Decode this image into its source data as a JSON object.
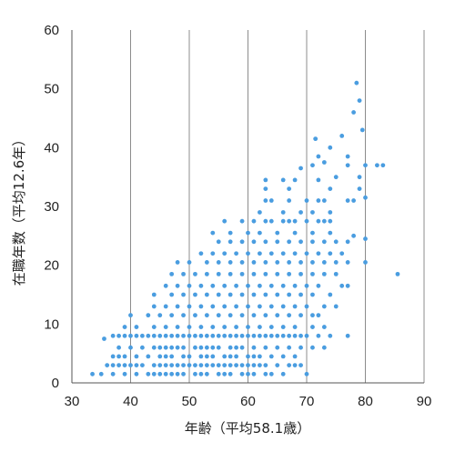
{
  "chart_data": {
    "type": "scatter",
    "xlabel": "年齢（平均58.1歳）",
    "ylabel": "在職年数（平均12.6年）",
    "xlim": [
      30,
      90
    ],
    "ylim": [
      0,
      60
    ],
    "xticks": [
      30,
      40,
      50,
      60,
      70,
      80,
      90
    ],
    "yticks": [
      0,
      10,
      20,
      30,
      40,
      50,
      60
    ],
    "grid": "vertical",
    "point_color": "#4a9de0",
    "series": [
      {
        "points": [
          [
            33.5,
            1.5
          ],
          [
            35,
            1.5
          ],
          [
            37,
            1.5
          ],
          [
            39,
            1.5
          ],
          [
            41,
            1.5
          ],
          [
            43,
            1.5
          ],
          [
            44,
            1.5
          ],
          [
            45,
            1.5
          ],
          [
            46,
            1.5
          ],
          [
            47,
            1.5
          ],
          [
            48,
            1.5
          ],
          [
            49,
            1.5
          ],
          [
            51,
            1.5
          ],
          [
            52,
            1.5
          ],
          [
            53,
            1.5
          ],
          [
            55,
            1.5
          ],
          [
            56,
            1.5
          ],
          [
            57,
            1.5
          ],
          [
            59,
            1.5
          ],
          [
            60,
            1.5
          ],
          [
            61,
            1.5
          ],
          [
            63,
            1.5
          ],
          [
            64,
            1.5
          ],
          [
            66,
            1.5
          ],
          [
            70,
            1.5
          ],
          [
            36,
            3
          ],
          [
            37,
            3
          ],
          [
            38,
            3
          ],
          [
            39,
            3
          ],
          [
            40,
            3
          ],
          [
            41,
            3
          ],
          [
            42,
            3
          ],
          [
            44,
            3
          ],
          [
            45,
            3
          ],
          [
            46,
            3
          ],
          [
            47,
            3
          ],
          [
            48,
            3
          ],
          [
            49,
            3
          ],
          [
            50,
            3
          ],
          [
            51,
            3
          ],
          [
            52,
            3
          ],
          [
            53,
            3
          ],
          [
            54,
            3
          ],
          [
            55,
            3
          ],
          [
            56,
            3
          ],
          [
            57,
            3
          ],
          [
            58,
            3
          ],
          [
            59,
            3
          ],
          [
            60,
            3
          ],
          [
            61,
            3
          ],
          [
            62,
            3
          ],
          [
            63,
            3
          ],
          [
            65,
            3
          ],
          [
            67,
            3
          ],
          [
            68,
            3
          ],
          [
            69,
            3
          ],
          [
            37,
            4.5
          ],
          [
            38,
            4.5
          ],
          [
            39,
            4.5
          ],
          [
            41,
            4.5
          ],
          [
            43,
            4.5
          ],
          [
            45,
            4.5
          ],
          [
            46,
            4.5
          ],
          [
            47,
            4.5
          ],
          [
            49,
            4.5
          ],
          [
            50,
            4.5
          ],
          [
            52,
            4.5
          ],
          [
            53,
            4.5
          ],
          [
            54,
            4.5
          ],
          [
            56,
            4.5
          ],
          [
            57,
            4.5
          ],
          [
            58,
            4.5
          ],
          [
            60,
            4.5
          ],
          [
            61,
            4.5
          ],
          [
            62,
            4.5
          ],
          [
            64,
            4.5
          ],
          [
            66,
            4.5
          ],
          [
            68,
            4.5
          ],
          [
            38,
            6
          ],
          [
            40,
            6
          ],
          [
            42,
            6
          ],
          [
            44,
            6
          ],
          [
            45,
            6
          ],
          [
            46,
            6
          ],
          [
            47,
            6
          ],
          [
            48,
            6
          ],
          [
            49,
            6
          ],
          [
            51,
            6
          ],
          [
            52,
            6
          ],
          [
            53,
            6
          ],
          [
            54,
            6
          ],
          [
            55,
            6
          ],
          [
            57,
            6
          ],
          [
            58,
            6
          ],
          [
            59,
            6
          ],
          [
            61,
            6
          ],
          [
            63,
            6
          ],
          [
            65,
            6
          ],
          [
            67,
            6
          ],
          [
            69,
            6
          ],
          [
            71,
            6
          ],
          [
            73,
            6
          ],
          [
            35.5,
            7.5
          ],
          [
            37,
            8
          ],
          [
            38,
            8
          ],
          [
            39,
            8
          ],
          [
            40,
            8
          ],
          [
            41,
            8
          ],
          [
            42,
            8
          ],
          [
            43,
            8
          ],
          [
            44,
            8
          ],
          [
            45,
            8
          ],
          [
            46,
            8
          ],
          [
            47,
            8
          ],
          [
            48,
            8
          ],
          [
            49,
            8
          ],
          [
            50,
            8
          ],
          [
            51,
            8
          ],
          [
            52,
            8
          ],
          [
            53,
            8
          ],
          [
            54,
            8
          ],
          [
            55,
            8
          ],
          [
            56,
            8
          ],
          [
            57,
            8
          ],
          [
            58,
            8
          ],
          [
            59,
            8
          ],
          [
            60,
            8
          ],
          [
            61,
            8
          ],
          [
            62,
            8
          ],
          [
            63,
            8
          ],
          [
            64,
            8
          ],
          [
            65,
            8
          ],
          [
            66,
            8
          ],
          [
            67,
            8
          ],
          [
            68,
            8
          ],
          [
            69,
            8
          ],
          [
            70,
            8
          ],
          [
            72,
            8
          ],
          [
            74,
            8
          ],
          [
            77,
            8
          ],
          [
            39,
            9.5
          ],
          [
            41,
            9.5
          ],
          [
            44,
            9.5
          ],
          [
            46,
            9.5
          ],
          [
            48,
            9.5
          ],
          [
            50,
            9.5
          ],
          [
            52,
            9.5
          ],
          [
            54,
            9.5
          ],
          [
            56,
            9.5
          ],
          [
            58,
            9.5
          ],
          [
            60,
            9.5
          ],
          [
            62,
            9.5
          ],
          [
            64,
            9.5
          ],
          [
            66,
            9.5
          ],
          [
            68,
            9.5
          ],
          [
            71,
            9.5
          ],
          [
            73,
            9.5
          ],
          [
            40,
            11.5
          ],
          [
            43,
            11.5
          ],
          [
            45,
            11.5
          ],
          [
            47,
            11.5
          ],
          [
            49,
            11.5
          ],
          [
            51,
            11.5
          ],
          [
            53,
            11.5
          ],
          [
            55,
            11.5
          ],
          [
            57,
            11.5
          ],
          [
            59,
            11.5
          ],
          [
            61,
            11.5
          ],
          [
            63,
            11.5
          ],
          [
            65,
            11.5
          ],
          [
            67,
            11.5
          ],
          [
            69,
            11.5
          ],
          [
            71,
            11.5
          ],
          [
            72,
            11.5
          ],
          [
            44,
            13
          ],
          [
            46,
            13
          ],
          [
            48,
            13
          ],
          [
            50,
            13
          ],
          [
            52,
            13
          ],
          [
            54,
            13
          ],
          [
            56,
            13
          ],
          [
            58,
            13
          ],
          [
            60,
            13
          ],
          [
            62,
            13
          ],
          [
            64,
            13
          ],
          [
            66,
            13
          ],
          [
            68,
            13
          ],
          [
            70,
            13
          ],
          [
            73,
            13
          ],
          [
            75,
            13
          ],
          [
            44,
            15
          ],
          [
            47,
            15
          ],
          [
            49,
            15
          ],
          [
            51,
            15
          ],
          [
            53,
            15
          ],
          [
            55,
            15
          ],
          [
            57,
            15
          ],
          [
            59,
            15
          ],
          [
            61,
            15
          ],
          [
            63,
            15
          ],
          [
            65,
            15
          ],
          [
            67,
            15
          ],
          [
            69,
            15
          ],
          [
            71,
            15
          ],
          [
            74,
            15
          ],
          [
            46,
            16.5
          ],
          [
            48,
            16.5
          ],
          [
            50,
            16.5
          ],
          [
            52,
            16.5
          ],
          [
            54,
            16.5
          ],
          [
            56,
            16.5
          ],
          [
            58,
            16.5
          ],
          [
            60,
            16.5
          ],
          [
            62,
            16.5
          ],
          [
            64,
            16.5
          ],
          [
            66,
            16.5
          ],
          [
            68,
            16.5
          ],
          [
            70,
            16.5
          ],
          [
            72,
            16.5
          ],
          [
            76,
            16.5
          ],
          [
            77,
            16.5
          ],
          [
            47,
            18.5
          ],
          [
            49,
            18.5
          ],
          [
            51,
            18.5
          ],
          [
            53,
            18.5
          ],
          [
            55,
            18.5
          ],
          [
            57,
            18.5
          ],
          [
            59,
            18.5
          ],
          [
            61,
            18.5
          ],
          [
            63,
            18.5
          ],
          [
            65,
            18.5
          ],
          [
            67,
            18.5
          ],
          [
            69,
            18.5
          ],
          [
            71,
            18.5
          ],
          [
            73,
            18.5
          ],
          [
            75,
            18.5
          ],
          [
            85.5,
            18.5
          ],
          [
            48,
            20.5
          ],
          [
            50,
            20.5
          ],
          [
            53,
            20.5
          ],
          [
            55,
            20.5
          ],
          [
            57,
            20.5
          ],
          [
            59,
            20.5
          ],
          [
            61,
            20.5
          ],
          [
            63,
            20.5
          ],
          [
            65,
            20.5
          ],
          [
            67,
            20.5
          ],
          [
            69,
            20.5
          ],
          [
            71,
            20.5
          ],
          [
            73,
            20.5
          ],
          [
            75,
            20.5
          ],
          [
            77,
            20.5
          ],
          [
            80,
            20.5
          ],
          [
            52,
            22
          ],
          [
            54,
            22
          ],
          [
            56,
            22
          ],
          [
            58,
            22
          ],
          [
            60,
            22
          ],
          [
            62,
            22
          ],
          [
            64,
            22
          ],
          [
            66,
            22
          ],
          [
            68,
            22
          ],
          [
            70,
            22
          ],
          [
            72,
            22
          ],
          [
            74,
            22
          ],
          [
            76,
            22
          ],
          [
            55,
            24
          ],
          [
            57,
            24
          ],
          [
            59,
            24
          ],
          [
            61,
            24
          ],
          [
            63,
            24
          ],
          [
            65,
            24
          ],
          [
            67,
            24
          ],
          [
            69,
            24
          ],
          [
            71,
            24
          ],
          [
            73,
            24
          ],
          [
            75,
            24
          ],
          [
            77,
            24
          ],
          [
            80,
            24.5
          ],
          [
            54,
            25.5
          ],
          [
            57,
            25.5
          ],
          [
            60,
            25.5
          ],
          [
            62,
            25.5
          ],
          [
            65,
            25.5
          ],
          [
            68,
            25.5
          ],
          [
            71,
            25.5
          ],
          [
            74,
            25.5
          ],
          [
            78,
            25
          ],
          [
            56,
            27.5
          ],
          [
            59,
            27.5
          ],
          [
            61,
            27.5
          ],
          [
            63,
            27.5
          ],
          [
            64,
            27.5
          ],
          [
            66,
            27.5
          ],
          [
            67,
            27.5
          ],
          [
            68,
            27.5
          ],
          [
            70,
            27.5
          ],
          [
            72,
            27.5
          ],
          [
            73,
            27.5
          ],
          [
            74,
            27.5
          ],
          [
            62,
            29
          ],
          [
            66,
            29
          ],
          [
            69,
            29
          ],
          [
            71,
            29
          ],
          [
            74,
            29
          ],
          [
            63,
            31
          ],
          [
            64,
            31
          ],
          [
            67,
            31
          ],
          [
            70,
            31
          ],
          [
            72,
            31
          ],
          [
            73,
            31
          ],
          [
            77,
            31
          ],
          [
            78,
            31
          ],
          [
            80,
            31.5
          ],
          [
            63,
            33
          ],
          [
            67,
            33
          ],
          [
            74,
            33
          ],
          [
            79,
            33
          ],
          [
            63,
            34.5
          ],
          [
            66,
            34.5
          ],
          [
            68,
            34.5
          ],
          [
            72,
            34.5
          ],
          [
            75,
            35
          ],
          [
            79,
            35
          ],
          [
            69,
            36.5
          ],
          [
            71,
            37
          ],
          [
            73,
            37.5
          ],
          [
            77,
            37
          ],
          [
            80,
            37
          ],
          [
            82,
            37
          ],
          [
            83,
            37
          ],
          [
            72,
            38.5
          ],
          [
            77,
            38.5
          ],
          [
            74,
            40
          ],
          [
            71.5,
            41.5
          ],
          [
            76,
            42
          ],
          [
            79.5,
            43
          ],
          [
            78,
            46
          ],
          [
            79,
            48
          ],
          [
            78.5,
            51
          ]
        ]
      }
    ]
  }
}
